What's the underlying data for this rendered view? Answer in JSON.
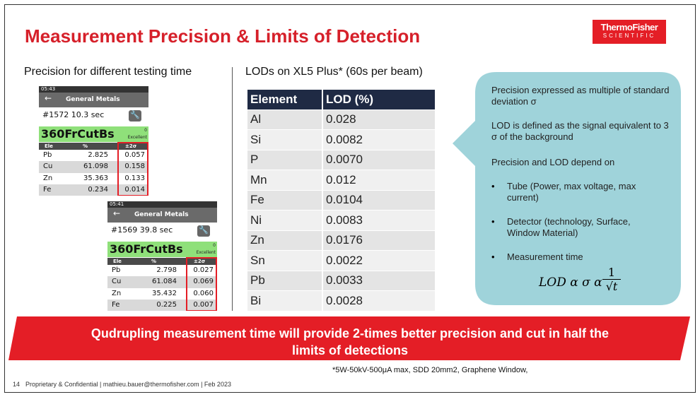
{
  "header": {
    "title": "Measurement Precision & Limits of Detection",
    "logo": {
      "line1": "ThermoFisher",
      "line2": "SCIENTIFIC"
    }
  },
  "precision": {
    "heading": "Precision for different testing time",
    "devices": [
      {
        "time": "05:43",
        "title": "General Metals",
        "reading": "#1572 10.3 sec",
        "grade": "360FrCutBs",
        "score": "0",
        "match": "Excellent",
        "columns": [
          "Ele",
          "%",
          "±2σ"
        ],
        "rows": [
          [
            "Pb",
            "2.825",
            "0.057"
          ],
          [
            "Cu",
            "61.098",
            "0.158"
          ],
          [
            "Zn",
            "35.363",
            "0.133"
          ],
          [
            "Fe",
            "0.234",
            "0.014"
          ]
        ]
      },
      {
        "time": "05:41",
        "title": "General Metals",
        "reading": "#1569 39.8 sec",
        "grade": "360FrCutBs",
        "score": "0",
        "match": "Excellent",
        "columns": [
          "Ele",
          "%",
          "±2σ"
        ],
        "rows": [
          [
            "Pb",
            "2.798",
            "0.027"
          ],
          [
            "Cu",
            "61.084",
            "0.069"
          ],
          [
            "Zn",
            "35.432",
            "0.060"
          ],
          [
            "Fe",
            "0.225",
            "0.007"
          ]
        ]
      }
    ]
  },
  "lod": {
    "heading": "LODs on XL5 Plus* (60s per beam)",
    "table": {
      "columns": [
        "Element",
        "LOD (%)"
      ],
      "rows": [
        [
          "Al",
          "0.028"
        ],
        [
          "Si",
          "0.0082"
        ],
        [
          "P",
          "0.0070"
        ],
        [
          "Mn",
          "0.012"
        ],
        [
          "Fe",
          "0.0104"
        ],
        [
          "Ni",
          "0.0083"
        ],
        [
          "Zn",
          "0.0176"
        ],
        [
          "Sn",
          "0.0022"
        ],
        [
          "Pb",
          "0.0033"
        ],
        [
          "Bi",
          "0.0028"
        ]
      ]
    }
  },
  "notes": {
    "paragraphs": [
      "Precision expressed as multiple of standard deviation σ",
      "LOD is defined as the signal equivalent to 3 σ of the background",
      "Precision and LOD depend on"
    ],
    "bullets": [
      "Tube (Power, max voltage, max current)",
      "Detector (technology, Surface, Window Material)",
      "Measurement time"
    ],
    "formula": {
      "left": "LOD α σ α",
      "numerator": "1",
      "denominator": "√t"
    }
  },
  "banner": "Qudrupling measurement time will provide 2-times better precision and cut in half the limits of detections",
  "footnote": "*5W-50kV-500μA max, SDD 20mm2, Graphene Window,",
  "footer": {
    "page": "14",
    "text": "Proprietary & Confidential | mathieu.bauer@thermofisher.com | Feb 2023"
  }
}
